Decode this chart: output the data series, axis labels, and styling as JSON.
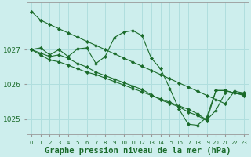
{
  "background_color": "#cdeeed",
  "grid_color": "#b0dede",
  "line_color": "#1a6b2a",
  "title": "Graphe pression niveau de la mer (hPa)",
  "title_fontsize": 7.5,
  "ylabel_fontsize": 6.5,
  "xticklabel_fontsize": 5,
  "hours": [
    0,
    1,
    2,
    3,
    4,
    5,
    6,
    7,
    8,
    9,
    10,
    11,
    12,
    13,
    14,
    15,
    16,
    17,
    18,
    19,
    20,
    21,
    22,
    23
  ],
  "series1": [
    1028.1,
    1027.85,
    1027.72,
    1027.6,
    1027.48,
    1027.36,
    1027.24,
    1027.12,
    1027.0,
    1026.88,
    1026.76,
    1026.64,
    1026.52,
    1026.4,
    1026.28,
    1026.16,
    1026.04,
    1025.92,
    1025.8,
    1025.68,
    1025.56,
    1025.44,
    1025.8,
    1025.75
  ],
  "series2": [
    1027.0,
    1027.05,
    1026.85,
    1027.0,
    1026.8,
    1027.02,
    1027.05,
    1026.6,
    1026.8,
    1027.35,
    1027.5,
    1027.55,
    1027.4,
    1026.75,
    1026.45,
    1025.88,
    1025.28,
    1024.85,
    1024.82,
    1025.05,
    1025.82,
    1025.82,
    1025.75,
    1025.72
  ],
  "series3": [
    1027.0,
    1026.9,
    1026.8,
    1026.85,
    1026.75,
    1026.6,
    1026.5,
    1026.35,
    1026.25,
    1026.15,
    1026.05,
    1025.95,
    1025.85,
    1025.7,
    1025.55,
    1025.45,
    1025.35,
    1025.2,
    1025.1,
    1024.95,
    1025.82,
    1025.82,
    1025.75,
    1025.7
  ],
  "series4": [
    1027.0,
    1026.85,
    1026.7,
    1026.65,
    1026.55,
    1026.45,
    1026.35,
    1026.28,
    1026.18,
    1026.08,
    1025.98,
    1025.88,
    1025.78,
    1025.68,
    1025.58,
    1025.48,
    1025.38,
    1025.28,
    1025.15,
    1024.97,
    1025.25,
    1025.75,
    1025.75,
    1025.68
  ],
  "ylim": [
    1024.55,
    1028.35
  ],
  "yticks": [
    1025,
    1026,
    1027
  ],
  "xlim": [
    -0.5,
    23.5
  ]
}
